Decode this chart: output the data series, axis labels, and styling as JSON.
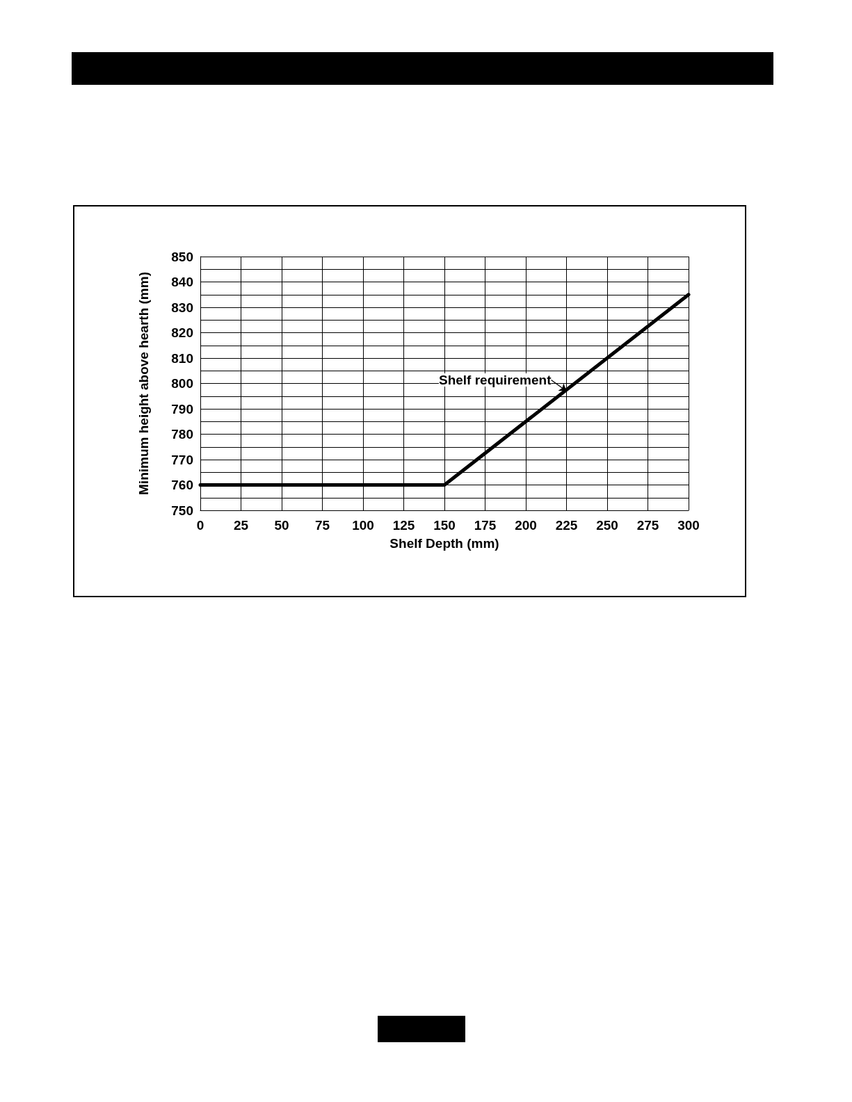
{
  "chart_data": {
    "type": "line",
    "xlabel": "Shelf Depth (mm)",
    "ylabel": "Minimum height above hearth (mm)",
    "x": [
      0,
      150,
      300
    ],
    "series": [
      {
        "color": "#000000",
        "values": [
          760,
          760,
          835
        ]
      }
    ],
    "xlim": [
      0,
      300
    ],
    "xticks": [
      0,
      25,
      50,
      75,
      100,
      125,
      150,
      175,
      200,
      225,
      250,
      275,
      300
    ],
    "ylim": [
      750,
      850
    ],
    "yticks": [
      750,
      760,
      770,
      780,
      790,
      800,
      810,
      820,
      830,
      840,
      850
    ],
    "grid": true,
    "marker": "none",
    "line_style": "solid",
    "annotations": [
      {
        "text": "Shelf requirement",
        "x": 225,
        "y": 797
      }
    ]
  }
}
